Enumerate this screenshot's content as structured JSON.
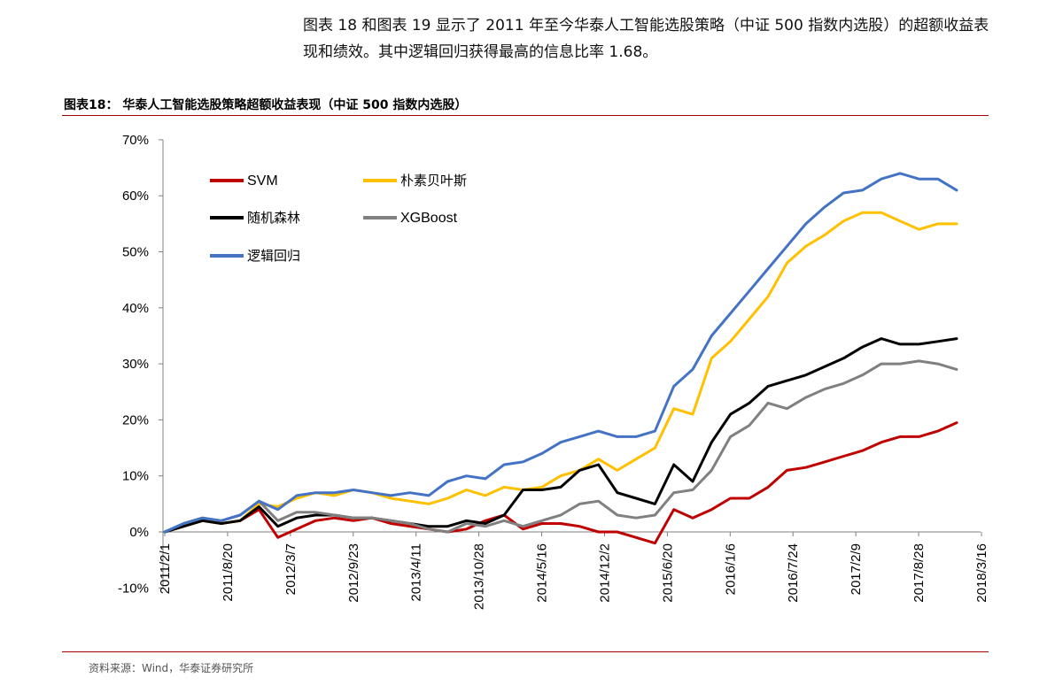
{
  "intro_text": "图表 18 和图表 19 显示了 2011 年至今华泰人工智能选股策略（中证 500 指数内选股）的超额收益表现和绩效。其中逻辑回归获得最高的信息比率 1.68。",
  "figure_title": "图表18：  华泰人工智能选股策略超额收益表现（中证 500 指数内选股）",
  "source_text": "资料来源：Wind，华泰证券研究所",
  "chart_data": {
    "type": "line",
    "title": "",
    "xlabel": "",
    "ylabel": "",
    "ylim": [
      -10,
      70
    ],
    "yticks": [
      "70%",
      "60%",
      "50%",
      "40%",
      "30%",
      "20%",
      "10%",
      "0%",
      "-10%"
    ],
    "ytick_values": [
      70,
      60,
      50,
      40,
      30,
      20,
      10,
      0,
      -10
    ],
    "xticks": [
      "2011/2/1",
      "2011/8/20",
      "2012/3/7",
      "2012/9/23",
      "2013/4/11",
      "2013/10/28",
      "2014/5/16",
      "2014/12/2",
      "2015/6/20",
      "2016/1/6",
      "2016/7/24",
      "2017/2/9",
      "2017/8/28",
      "2018/3/16"
    ],
    "legend_position": "top-left",
    "grid": false,
    "x": [
      "2011/2/1",
      "2011/4/1",
      "2011/6/1",
      "2011/8/1",
      "2011/10/1",
      "2011/12/1",
      "2012/2/1",
      "2012/4/1",
      "2012/6/1",
      "2012/8/1",
      "2012/10/1",
      "2012/12/1",
      "2013/2/1",
      "2013/4/1",
      "2013/6/1",
      "2013/8/1",
      "2013/10/1",
      "2013/12/1",
      "2014/2/1",
      "2014/4/1",
      "2014/6/1",
      "2014/8/1",
      "2014/10/1",
      "2014/12/1",
      "2015/2/1",
      "2015/4/1",
      "2015/6/1",
      "2015/8/1",
      "2015/10/1",
      "2015/12/1",
      "2016/2/1",
      "2016/4/1",
      "2016/6/1",
      "2016/8/1",
      "2016/10/1",
      "2016/12/1",
      "2017/2/1",
      "2017/4/1",
      "2017/6/1",
      "2017/8/1",
      "2017/10/1",
      "2017/12/1",
      "2018/2/1"
    ],
    "series": [
      {
        "name": "SVM",
        "color": "#c00000",
        "values": [
          0,
          1,
          2,
          1.5,
          2,
          4,
          -1,
          0.5,
          2,
          2.5,
          2,
          2.5,
          1.5,
          1,
          0.5,
          0,
          0.5,
          2,
          3,
          0.5,
          1.5,
          1.5,
          1,
          0,
          0,
          -1,
          -2,
          4,
          2.5,
          4,
          6,
          6,
          8,
          11,
          11.5,
          12.5,
          13.5,
          14.5,
          16,
          17,
          17,
          18,
          19.5
        ]
      },
      {
        "name": "朴素贝叶斯",
        "color": "#ffc000",
        "values": [
          0,
          1,
          2,
          1.5,
          2,
          5,
          4.5,
          6,
          7,
          6.5,
          7.5,
          7,
          6,
          5.5,
          5,
          6,
          7.5,
          6.5,
          8,
          7.5,
          8,
          10,
          11,
          13,
          11,
          13,
          15,
          22,
          21,
          31,
          34,
          38,
          42,
          48,
          51,
          53,
          55.5,
          57,
          57,
          55.5,
          54,
          55,
          55
        ]
      },
      {
        "name": "随机森林",
        "color": "#000000",
        "values": [
          0,
          1,
          2,
          1.5,
          2,
          4.5,
          1,
          2.5,
          3,
          3,
          2.5,
          2.5,
          2,
          1.5,
          1,
          1,
          2,
          1.5,
          3,
          7.5,
          7.5,
          8,
          11,
          12,
          7,
          6,
          5,
          12,
          9,
          16,
          21,
          23,
          26,
          27,
          28,
          29.5,
          31,
          33,
          34.5,
          33.5,
          33.5,
          34,
          34.5
        ]
      },
      {
        "name": "XGBoost",
        "color": "#808080",
        "values": [
          0,
          1.5,
          2.5,
          2,
          3,
          5.5,
          2,
          3.5,
          3.5,
          3,
          2.5,
          2.5,
          2,
          1.5,
          0.5,
          0,
          1.5,
          1,
          2,
          1,
          2,
          3,
          5,
          5.5,
          3,
          2.5,
          3,
          7,
          7.5,
          11,
          17,
          19,
          23,
          22,
          24,
          25.5,
          26.5,
          28,
          30,
          30,
          30.5,
          30,
          29
        ]
      },
      {
        "name": "逻辑回归",
        "color": "#4472c4",
        "values": [
          0,
          1.5,
          2.5,
          2,
          3,
          5.5,
          4,
          6.5,
          7,
          7,
          7.5,
          7,
          6.5,
          7,
          6.5,
          9,
          10,
          9.5,
          12,
          12.5,
          14,
          16,
          17,
          18,
          17,
          17,
          18,
          26,
          29,
          35,
          39,
          43,
          47,
          51,
          55,
          58,
          60.5,
          61,
          63,
          64,
          63,
          63,
          61
        ]
      }
    ]
  }
}
